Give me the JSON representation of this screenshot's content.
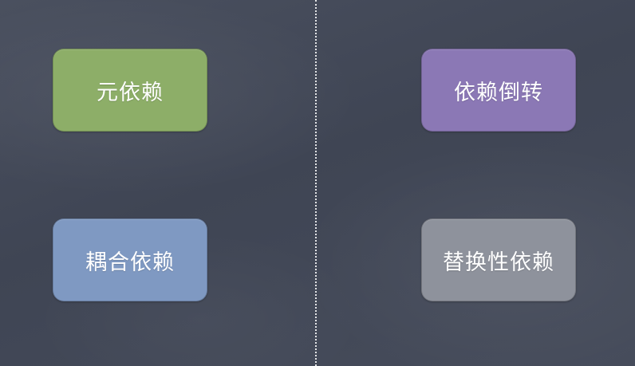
{
  "boxes": [
    {
      "label": "元依赖",
      "color": "#8dae68"
    },
    {
      "label": "依赖倒转",
      "color": "#8b78b5"
    },
    {
      "label": "耦合依赖",
      "color": "#7f99c2"
    },
    {
      "label": "替换性依赖",
      "color": "#8e929c"
    }
  ]
}
